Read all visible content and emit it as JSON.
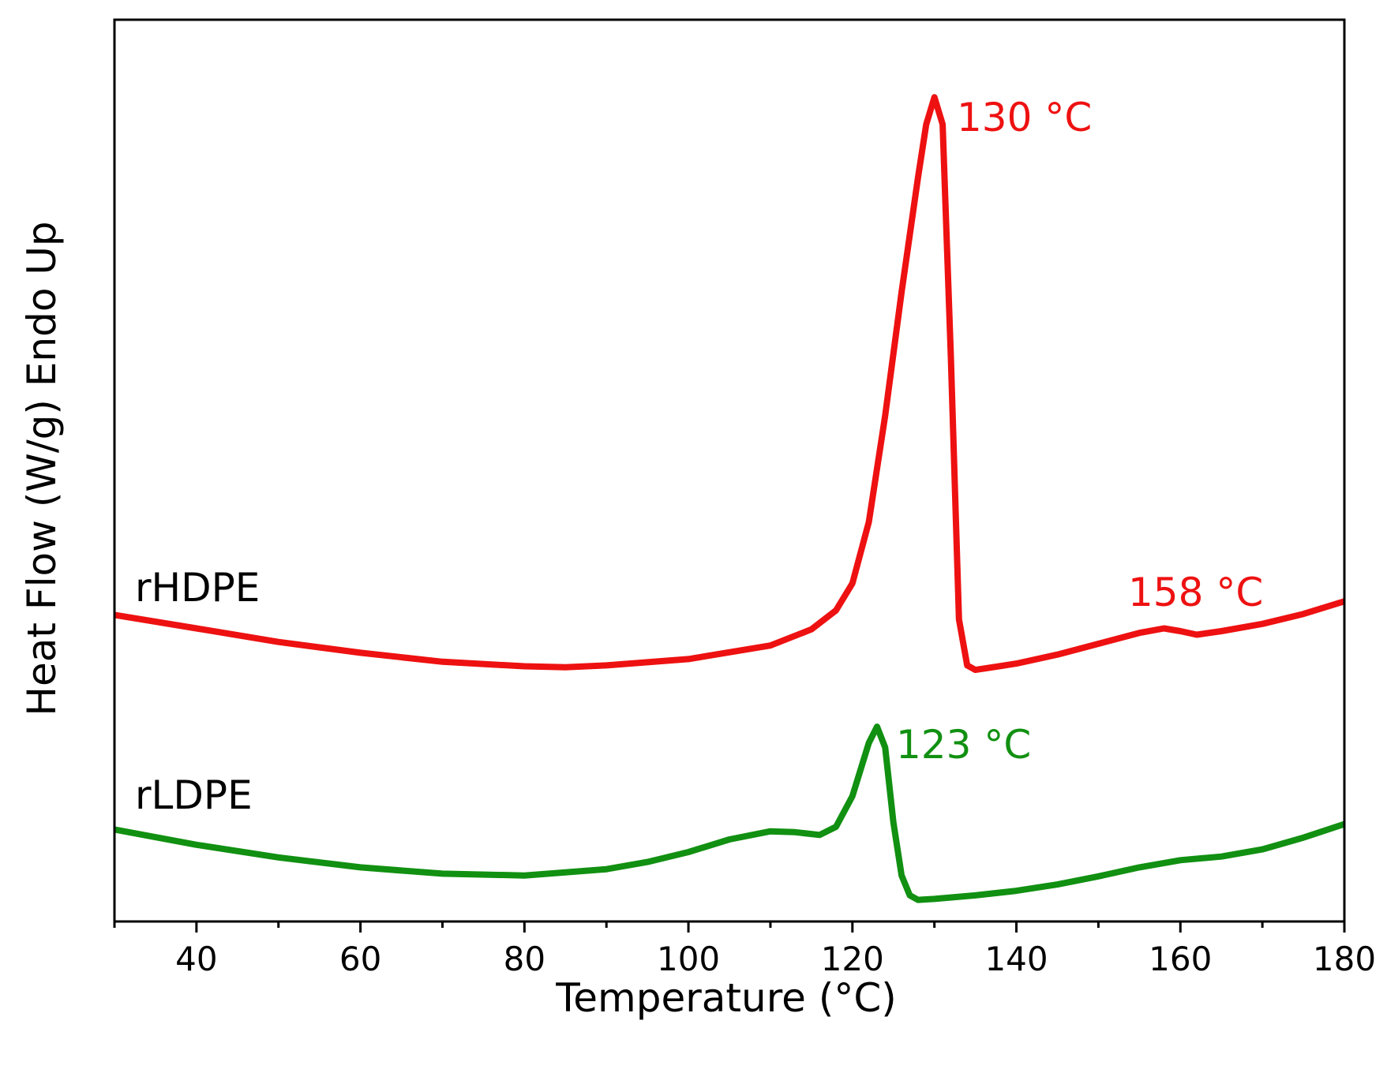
{
  "chart_data": {
    "type": "line",
    "xlabel": "Temperature (°C)",
    "ylabel": "Heat Flow (W/g) Endo Up",
    "xlim": [
      30,
      180
    ],
    "xticks": [
      40,
      60,
      80,
      100,
      120,
      140,
      160,
      180
    ],
    "xminor_ticks": [
      30,
      50,
      70,
      90,
      110,
      130,
      150,
      170
    ],
    "ylim": [
      0,
      100
    ],
    "series": [
      {
        "name": "rHDPE",
        "color": "#ee1111",
        "x": [
          30,
          40,
          50,
          60,
          70,
          80,
          85,
          90,
          100,
          110,
          115,
          118,
          120,
          122,
          124,
          126,
          128,
          129,
          130,
          131,
          132,
          133,
          134,
          135,
          140,
          145,
          150,
          155,
          158,
          160,
          162,
          165,
          170,
          175,
          180
        ],
        "values": [
          34.0,
          32.5,
          31.0,
          29.8,
          28.8,
          28.3,
          28.2,
          28.4,
          29.1,
          30.6,
          32.4,
          34.5,
          37.5,
          44.3,
          56.1,
          69.8,
          82.5,
          88.4,
          91.4,
          88.4,
          62.9,
          33.5,
          28.4,
          27.9,
          28.6,
          29.6,
          30.8,
          32.0,
          32.5,
          32.2,
          31.8,
          32.2,
          33.0,
          34.1,
          35.5
        ]
      },
      {
        "name": "rLDPE",
        "color": "#119011",
        "x": [
          30,
          40,
          50,
          60,
          70,
          80,
          90,
          95,
          100,
          105,
          110,
          113,
          116,
          118,
          120,
          122,
          123,
          124,
          125,
          126,
          127,
          128,
          130,
          135,
          140,
          145,
          150,
          155,
          160,
          165,
          170,
          175,
          180
        ],
        "values": [
          10.2,
          8.5,
          7.1,
          6.0,
          5.3,
          5.1,
          5.8,
          6.6,
          7.7,
          9.1,
          10.0,
          9.9,
          9.6,
          10.5,
          13.9,
          19.8,
          21.6,
          19.3,
          11.0,
          5.1,
          2.9,
          2.4,
          2.5,
          2.9,
          3.4,
          4.1,
          5.0,
          6.0,
          6.8,
          7.2,
          8.0,
          9.3,
          10.8
        ]
      }
    ],
    "annotations": [
      {
        "text": "130 °C",
        "color": "#ee1111"
      },
      {
        "text": "158 °C",
        "color": "#ee1111"
      },
      {
        "text": "123 °C",
        "color": "#119011"
      }
    ]
  }
}
